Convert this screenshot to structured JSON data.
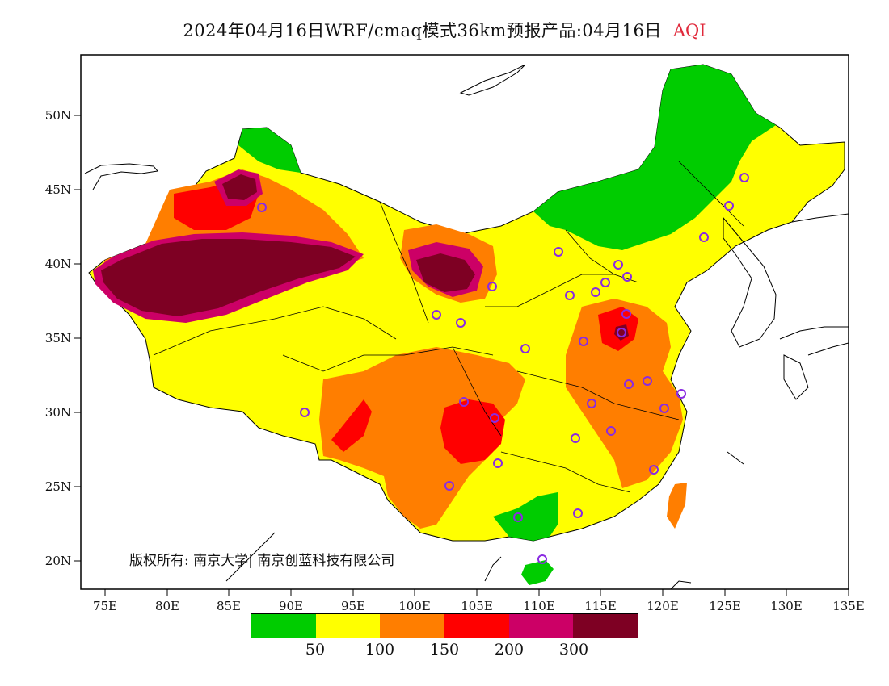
{
  "title": {
    "main": "2024年04月16日WRF/cmaq模式36km预报产品:04月16日",
    "product": "AQI"
  },
  "axes": {
    "x_ticks": [
      "75E",
      "80E",
      "85E",
      "90E",
      "95E",
      "100E",
      "105E",
      "110E",
      "115E",
      "120E",
      "125E",
      "130E",
      "135E"
    ],
    "y_ticks": [
      "50N",
      "45N",
      "40N",
      "35N",
      "30N",
      "25N",
      "20N"
    ]
  },
  "copyright": "版权所有: 南京大学| 南京创蓝科技有限公司",
  "legend": {
    "colors": [
      "#00cc00",
      "#ffff00",
      "#ff7e00",
      "#ff0000",
      "#cc0066",
      "#7e0023"
    ],
    "labels": [
      "50",
      "100",
      "150",
      "200",
      "300"
    ]
  },
  "colors": {
    "good": "#00cc00",
    "moderate": "#ffff00",
    "sensitive": "#ff7e00",
    "unhealthy": "#ff0000",
    "very_unhealthy": "#cc0066",
    "hazardous": "#7e0023",
    "station_marker": "#8a2be2"
  }
}
